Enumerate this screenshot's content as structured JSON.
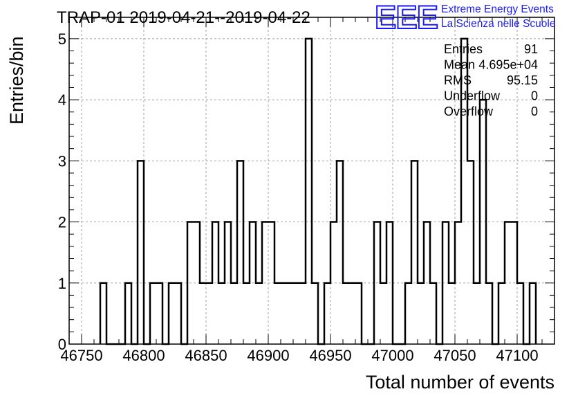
{
  "chart_data": {
    "type": "bar",
    "title": "TRAP-01 2019-04-21--2019-04-22",
    "xlabel": "Total number of events",
    "ylabel": "Entries/bin",
    "xlim": [
      46740,
      47130
    ],
    "ylim": [
      0,
      5.35
    ],
    "bin_width": 5,
    "x_ticks": [
      46750,
      46800,
      46850,
      46900,
      46950,
      47000,
      47050,
      47100
    ],
    "y_ticks": [
      0,
      1,
      2,
      3,
      4,
      5
    ],
    "grid": true,
    "bins": [
      {
        "x": 46765,
        "y": 1
      },
      {
        "x": 46785,
        "y": 1
      },
      {
        "x": 46795,
        "y": 3
      },
      {
        "x": 46805,
        "y": 1
      },
      {
        "x": 46810,
        "y": 1
      },
      {
        "x": 46820,
        "y": 1
      },
      {
        "x": 46825,
        "y": 1
      },
      {
        "x": 46835,
        "y": 2
      },
      {
        "x": 46840,
        "y": 2
      },
      {
        "x": 46845,
        "y": 1
      },
      {
        "x": 46850,
        "y": 1
      },
      {
        "x": 46855,
        "y": 2
      },
      {
        "x": 46860,
        "y": 1
      },
      {
        "x": 46865,
        "y": 2
      },
      {
        "x": 46870,
        "y": 1
      },
      {
        "x": 46875,
        "y": 3
      },
      {
        "x": 46880,
        "y": 1
      },
      {
        "x": 46885,
        "y": 2
      },
      {
        "x": 46890,
        "y": 1
      },
      {
        "x": 46895,
        "y": 2
      },
      {
        "x": 46900,
        "y": 2
      },
      {
        "x": 46905,
        "y": 1
      },
      {
        "x": 46910,
        "y": 1
      },
      {
        "x": 46915,
        "y": 1
      },
      {
        "x": 46920,
        "y": 1
      },
      {
        "x": 46925,
        "y": 1
      },
      {
        "x": 46930,
        "y": 5
      },
      {
        "x": 46935,
        "y": 1
      },
      {
        "x": 46945,
        "y": 1
      },
      {
        "x": 46950,
        "y": 2
      },
      {
        "x": 46955,
        "y": 3
      },
      {
        "x": 46960,
        "y": 1
      },
      {
        "x": 46965,
        "y": 1
      },
      {
        "x": 46970,
        "y": 1
      },
      {
        "x": 46985,
        "y": 2
      },
      {
        "x": 46990,
        "y": 1
      },
      {
        "x": 46995,
        "y": 2
      },
      {
        "x": 47010,
        "y": 1
      },
      {
        "x": 47015,
        "y": 3
      },
      {
        "x": 47020,
        "y": 1
      },
      {
        "x": 47025,
        "y": 2
      },
      {
        "x": 47030,
        "y": 1
      },
      {
        "x": 47040,
        "y": 2
      },
      {
        "x": 47045,
        "y": 1
      },
      {
        "x": 47050,
        "y": 2
      },
      {
        "x": 47055,
        "y": 5
      },
      {
        "x": 47060,
        "y": 3
      },
      {
        "x": 47065,
        "y": 1
      },
      {
        "x": 47070,
        "y": 4
      },
      {
        "x": 47075,
        "y": 1
      },
      {
        "x": 47085,
        "y": 1
      },
      {
        "x": 47090,
        "y": 2
      },
      {
        "x": 47095,
        "y": 2
      },
      {
        "x": 47100,
        "y": 1
      },
      {
        "x": 47110,
        "y": 1
      }
    ],
    "stats": [
      {
        "label": "Entries",
        "value": "91"
      },
      {
        "label": "Mean",
        "value": "4.695e+04"
      },
      {
        "label": "RMS",
        "value": "95.15"
      },
      {
        "label": "Underflow",
        "value": "0"
      },
      {
        "label": "Overflow",
        "value": "0"
      }
    ],
    "logo": {
      "mark": "EEE",
      "line1": "Extreme Energy Events",
      "line2": "La Scienza nelle Scuole",
      "color": "#1a1aff"
    },
    "colors": {
      "line": "#000000",
      "grid": "#a0a0a0",
      "background": "#ffffff"
    }
  }
}
